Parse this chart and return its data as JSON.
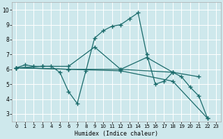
{
  "title": "",
  "xlabel": "Humidex (Indice chaleur)",
  "xlim": [
    -0.5,
    23.5
  ],
  "ylim": [
    2.5,
    10.5
  ],
  "yticks": [
    3,
    4,
    5,
    6,
    7,
    8,
    9,
    10
  ],
  "xticks": [
    0,
    1,
    2,
    3,
    4,
    5,
    6,
    7,
    8,
    9,
    10,
    11,
    12,
    13,
    14,
    15,
    16,
    17,
    18,
    19,
    20,
    21,
    22,
    23
  ],
  "bg_color": "#cee8ec",
  "grid_color": "#ffffff",
  "line_color": "#1b6b6b",
  "lines": [
    {
      "x": [
        0,
        1,
        2,
        3,
        4,
        5,
        6,
        7,
        8,
        9,
        10,
        11,
        12,
        13,
        14,
        15,
        16,
        17,
        18,
        19,
        20,
        21,
        22
      ],
      "y": [
        6.1,
        6.3,
        6.2,
        6.2,
        6.2,
        5.8,
        4.5,
        3.7,
        5.9,
        8.1,
        8.6,
        8.9,
        9.0,
        9.4,
        9.8,
        7.0,
        5.0,
        5.2,
        5.8,
        5.5,
        4.8,
        4.2,
        2.7
      ]
    },
    {
      "x": [
        0,
        3,
        6,
        9,
        12,
        15,
        18,
        21
      ],
      "y": [
        6.1,
        6.2,
        6.2,
        7.5,
        6.0,
        6.8,
        5.8,
        5.5
      ]
    },
    {
      "x": [
        0,
        6,
        12,
        18
      ],
      "y": [
        6.1,
        6.0,
        6.0,
        5.8
      ]
    },
    {
      "x": [
        0,
        6,
        12,
        18,
        22
      ],
      "y": [
        6.1,
        6.0,
        5.9,
        5.2,
        2.7
      ]
    }
  ]
}
